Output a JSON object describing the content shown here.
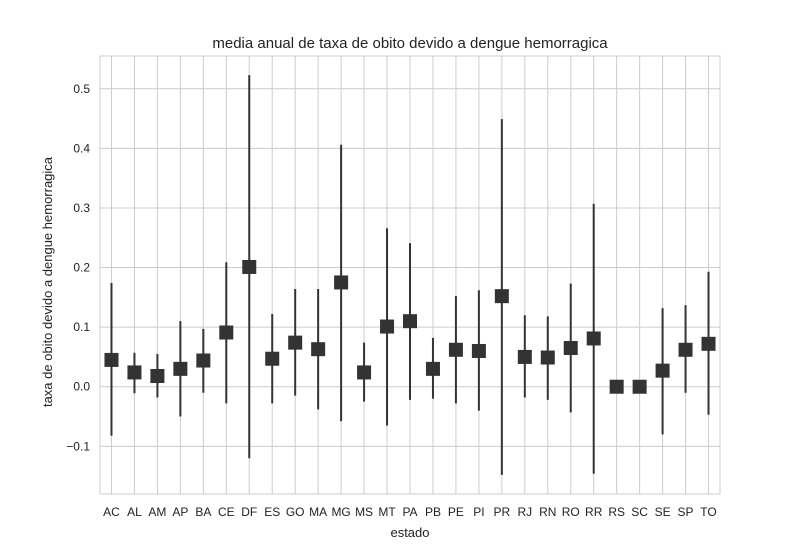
{
  "chart_data": {
    "type": "scatter",
    "title": "media anual de taxa de obito devido a dengue hemorragica",
    "xlabel": "estado",
    "ylabel": "taxa de obito devido a dengue hemorragica",
    "categories": [
      "AC",
      "AL",
      "AM",
      "AP",
      "BA",
      "CE",
      "DF",
      "ES",
      "GO",
      "MA",
      "MG",
      "MS",
      "MT",
      "PA",
      "PB",
      "PE",
      "PI",
      "PR",
      "RJ",
      "RN",
      "RO",
      "RR",
      "RS",
      "SC",
      "SE",
      "SP",
      "TO"
    ],
    "values": [
      0.045,
      0.024,
      0.018,
      0.03,
      0.044,
      0.091,
      0.201,
      0.047,
      0.074,
      0.063,
      0.175,
      0.024,
      0.101,
      0.11,
      0.03,
      0.062,
      0.06,
      0.152,
      0.05,
      0.049,
      0.065,
      0.081,
      0.0,
      0.0,
      0.027,
      0.062,
      0.072
    ],
    "error_low": [
      -0.082,
      -0.011,
      -0.018,
      -0.05,
      -0.01,
      -0.028,
      -0.12,
      -0.028,
      -0.015,
      -0.038,
      -0.058,
      -0.025,
      -0.065,
      -0.022,
      -0.02,
      -0.028,
      -0.04,
      -0.148,
      -0.018,
      -0.022,
      -0.043,
      -0.146,
      0.0,
      0.0,
      -0.08,
      -0.01,
      -0.047
    ],
    "error_high": [
      0.174,
      0.057,
      0.055,
      0.11,
      0.097,
      0.209,
      0.523,
      0.122,
      0.164,
      0.164,
      0.406,
      0.074,
      0.266,
      0.241,
      0.082,
      0.152,
      0.162,
      0.449,
      0.12,
      0.118,
      0.173,
      0.307,
      0.0,
      0.0,
      0.132,
      0.137,
      0.193
    ],
    "yticks": [
      -0.1,
      0.0,
      0.1,
      0.2,
      0.3,
      0.4,
      0.5
    ],
    "ytick_labels": [
      "−0.1",
      "0.0",
      "0.1",
      "0.2",
      "0.3",
      "0.4",
      "0.5"
    ],
    "ylim": [
      -0.18,
      0.555
    ],
    "grid": true,
    "marker": "square",
    "colors": {
      "marker": "#333333",
      "grid": "#cccccc",
      "background": "#ffffff"
    }
  }
}
